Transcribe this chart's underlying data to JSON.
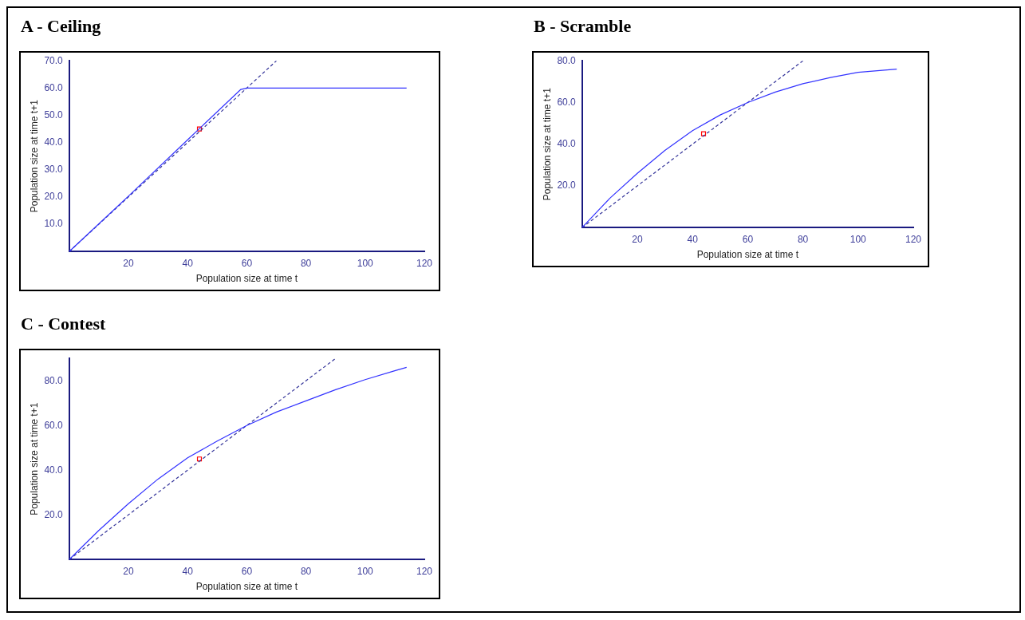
{
  "chart_data": [
    {
      "type": "line",
      "title": "A - Ceiling",
      "xlabel": "Population size at time t",
      "ylabel": "Population size at time t+1",
      "xlim": [
        0,
        120
      ],
      "ylim": [
        0,
        70
      ],
      "xticks": [
        20,
        40,
        60,
        80,
        100,
        120
      ],
      "yticks": [
        {
          "value": 10,
          "label": "10.0"
        },
        {
          "value": 20,
          "label": "20.0"
        },
        {
          "value": 30,
          "label": "30.0"
        },
        {
          "value": 40,
          "label": "40.0"
        },
        {
          "value": 50,
          "label": "50.0"
        },
        {
          "value": 60,
          "label": "60.0"
        },
        {
          "value": 70,
          "label": "70.0"
        }
      ],
      "series": [
        {
          "type": "line",
          "color": "#3333ff",
          "line_style": "solid",
          "marker": "none",
          "x": [
            0,
            20,
            40,
            58,
            60,
            114
          ],
          "values": [
            0,
            20.3,
            41,
            59.5,
            60,
            60
          ]
        },
        {
          "type": "line",
          "color": "#333399",
          "line_style": "dashed",
          "marker": "none",
          "x": [
            0,
            70
          ],
          "values": [
            0,
            70
          ]
        },
        {
          "type": "scatter",
          "color": "#ff0000",
          "marker": "square",
          "x": [
            44
          ],
          "values": [
            45
          ]
        }
      ]
    },
    {
      "type": "line",
      "title": "B - Scramble",
      "xlabel": "Population size at time t",
      "ylabel": "Population size at time t+1",
      "xlim": [
        0,
        120
      ],
      "ylim": [
        0,
        80
      ],
      "xticks": [
        20,
        40,
        60,
        80,
        100,
        120
      ],
      "yticks": [
        {
          "value": 20,
          "label": "20.0"
        },
        {
          "value": 40,
          "label": "40.0"
        },
        {
          "value": 60,
          "label": "60.0"
        },
        {
          "value": 80,
          "label": "80.0"
        }
      ],
      "series": [
        {
          "type": "line",
          "color": "#3333ff",
          "line_style": "solid",
          "marker": "none",
          "x": [
            0,
            10,
            20,
            30,
            40,
            50,
            60,
            70,
            80,
            90,
            100,
            114
          ],
          "values": [
            0,
            14,
            26,
            37,
            46.5,
            54,
            60,
            65,
            69,
            72,
            74.5,
            76
          ]
        },
        {
          "type": "line",
          "color": "#333399",
          "line_style": "dashed",
          "marker": "none",
          "x": [
            0,
            80
          ],
          "values": [
            0,
            80
          ]
        },
        {
          "type": "scatter",
          "color": "#ff0000",
          "marker": "square",
          "x": [
            44
          ],
          "values": [
            45
          ]
        }
      ]
    },
    {
      "type": "line",
      "title": "C - Contest",
      "xlabel": "Population size at time t",
      "ylabel": "Population size at time t+1",
      "xlim": [
        0,
        120
      ],
      "ylim": [
        0,
        90
      ],
      "xticks": [
        20,
        40,
        60,
        80,
        100,
        120
      ],
      "yticks": [
        {
          "value": 20,
          "label": "20.0"
        },
        {
          "value": 40,
          "label": "40.0"
        },
        {
          "value": 60,
          "label": "60.0"
        },
        {
          "value": 80,
          "label": "80.0"
        }
      ],
      "series": [
        {
          "type": "line",
          "color": "#3333ff",
          "line_style": "solid",
          "marker": "none",
          "x": [
            0,
            10,
            20,
            30,
            40,
            50,
            60,
            70,
            80,
            90,
            100,
            110,
            114
          ],
          "values": [
            0,
            13,
            25,
            36,
            45.5,
            53,
            60,
            66,
            71,
            76,
            80.5,
            84.5,
            86
          ]
        },
        {
          "type": "line",
          "color": "#333399",
          "line_style": "dashed",
          "marker": "none",
          "x": [
            0,
            90
          ],
          "values": [
            0,
            90
          ]
        },
        {
          "type": "scatter",
          "color": "#ff0000",
          "marker": "square",
          "x": [
            44
          ],
          "values": [
            45
          ]
        }
      ]
    }
  ]
}
